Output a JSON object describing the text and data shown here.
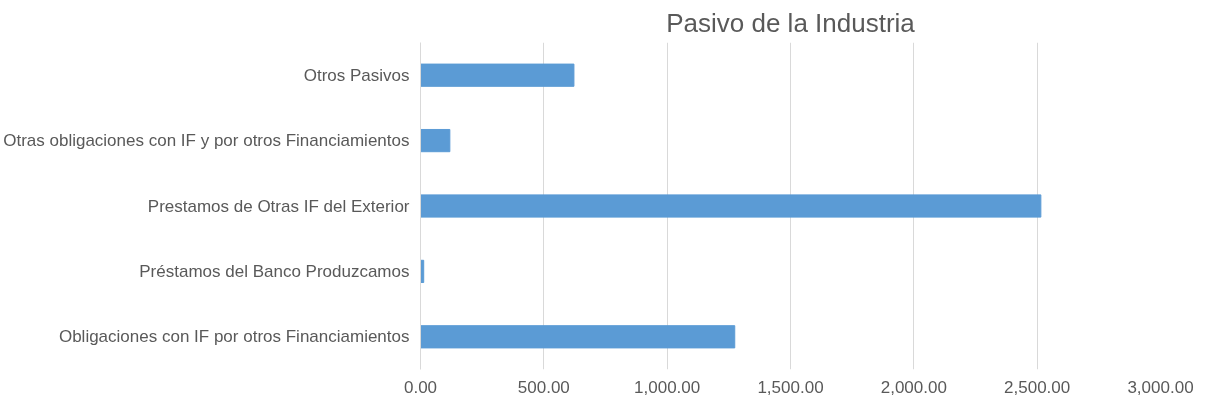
{
  "chart_data": {
    "type": "bar",
    "orientation": "horizontal",
    "title": "Pasivo de la Industria",
    "categories": [
      "Otros Pasivos",
      "Otras obligaciones con IF y por otros Financiamientos",
      "Prestamos de Otras IF del Exterior",
      "Préstamos del Banco Produzcamos",
      "Obligaciones con IF por otros Financiamientos"
    ],
    "values": [
      622,
      119,
      2515,
      13,
      1274
    ],
    "color": "#5b9bd5",
    "xlim": [
      0,
      3000
    ],
    "xticks": [
      {
        "value": 0,
        "label": "0.00"
      },
      {
        "value": 500,
        "label": "500.00"
      },
      {
        "value": 1000,
        "label": "1,000.00"
      },
      {
        "value": 1500,
        "label": "1,500.00"
      },
      {
        "value": 2000,
        "label": "2,000.00"
      },
      {
        "value": 2500,
        "label": "2,500.00"
      },
      {
        "value": 3000,
        "label": "3,000.00"
      }
    ],
    "grid": "x"
  }
}
